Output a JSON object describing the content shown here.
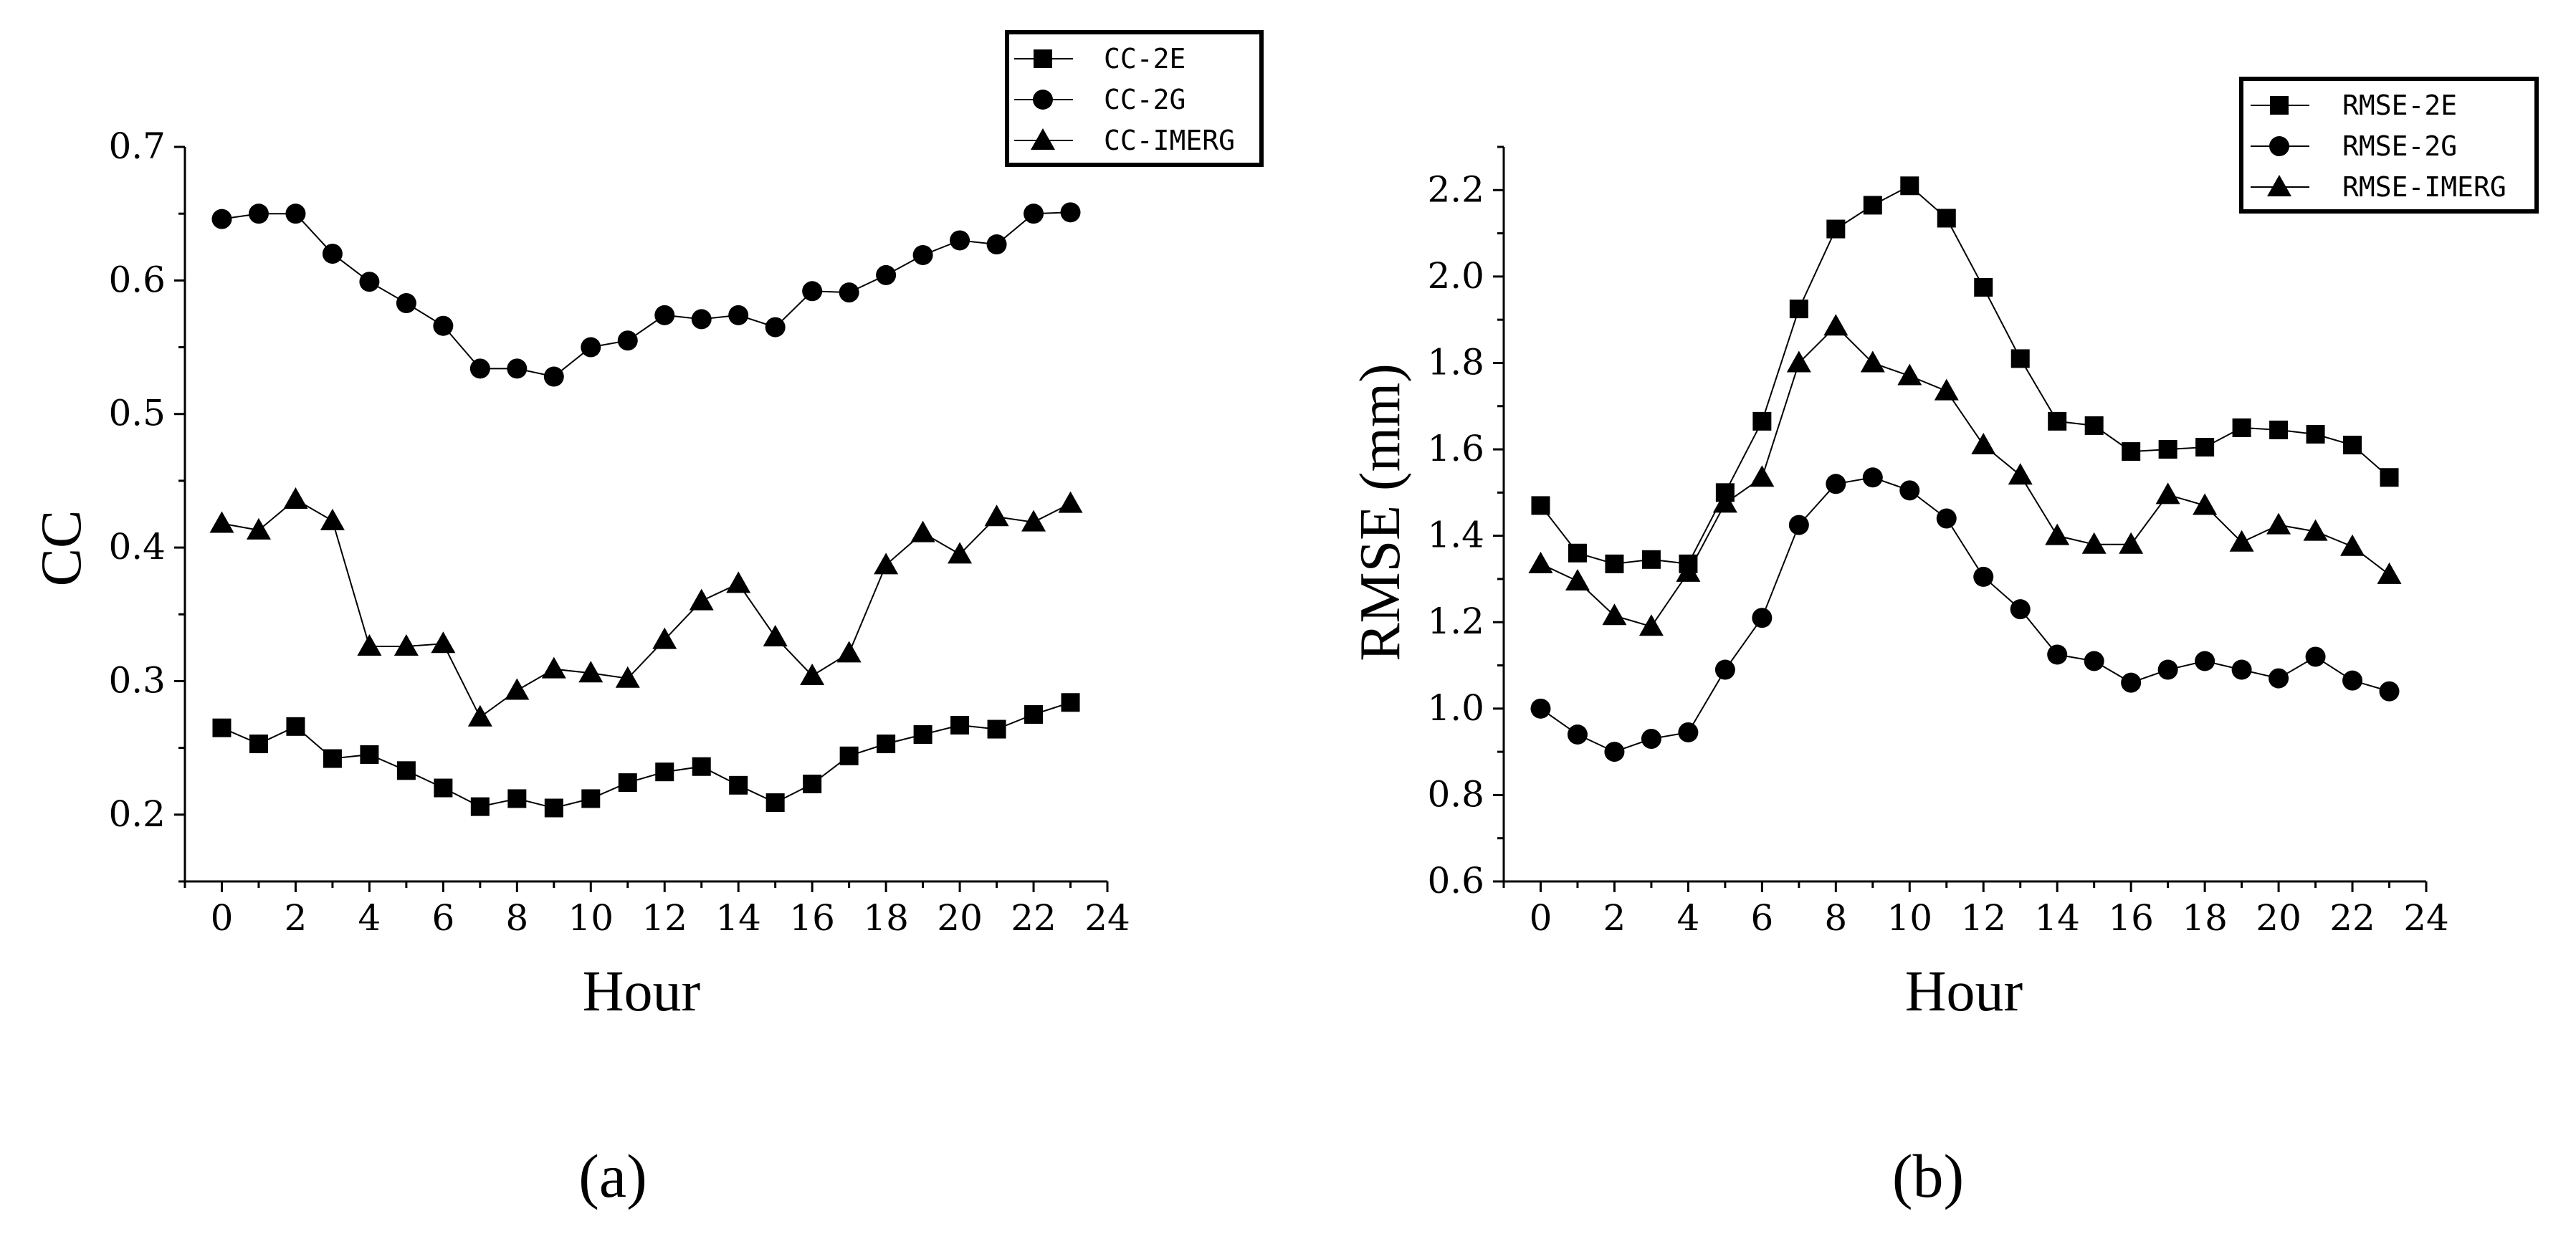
{
  "chart_data": [
    {
      "panel": "a",
      "caption": "(a)",
      "type": "line",
      "title": "",
      "xlabel": "Hour",
      "ylabel": "CC",
      "xlim": [
        -1,
        24
      ],
      "ylim": [
        0.15,
        0.7
      ],
      "xticks": [
        0,
        2,
        4,
        6,
        8,
        10,
        12,
        14,
        16,
        18,
        20,
        22,
        24
      ],
      "yticks": [
        0.2,
        0.3,
        0.4,
        0.5,
        0.6,
        0.7
      ],
      "ytick_labels": [
        "0.2",
        "0.3",
        "0.4",
        "0.5",
        "0.6",
        "0.7"
      ],
      "legend_position": "top-right",
      "x": [
        0,
        1,
        2,
        3,
        4,
        5,
        6,
        7,
        8,
        9,
        10,
        11,
        12,
        13,
        14,
        15,
        16,
        17,
        18,
        19,
        20,
        21,
        22,
        23
      ],
      "series": [
        {
          "name": "CC-2E",
          "marker": "square",
          "values": [
            0.265,
            0.253,
            0.266,
            0.242,
            0.245,
            0.233,
            0.22,
            0.206,
            0.212,
            0.205,
            0.212,
            0.224,
            0.232,
            0.236,
            0.222,
            0.209,
            0.223,
            0.244,
            0.253,
            0.26,
            0.267,
            0.264,
            0.275,
            0.284
          ]
        },
        {
          "name": "CC-2G",
          "marker": "circle",
          "values": [
            0.646,
            0.65,
            0.65,
            0.62,
            0.599,
            0.583,
            0.566,
            0.534,
            0.534,
            0.528,
            0.55,
            0.555,
            0.574,
            0.571,
            0.574,
            0.565,
            0.592,
            0.591,
            0.604,
            0.619,
            0.63,
            0.627,
            0.65,
            0.651
          ]
        },
        {
          "name": "CC-IMERG",
          "marker": "triangle",
          "values": [
            0.418,
            0.413,
            0.436,
            0.42,
            0.326,
            0.326,
            0.328,
            0.273,
            0.293,
            0.309,
            0.306,
            0.302,
            0.331,
            0.36,
            0.373,
            0.333,
            0.304,
            0.321,
            0.387,
            0.411,
            0.395,
            0.423,
            0.419,
            0.433
          ]
        }
      ]
    },
    {
      "panel": "b",
      "caption": "(b)",
      "type": "line",
      "title": "",
      "xlabel": "Hour",
      "ylabel": "RMSE (mm)",
      "xlim": [
        -1,
        24
      ],
      "ylim": [
        0.6,
        2.3
      ],
      "xticks": [
        0,
        2,
        4,
        6,
        8,
        10,
        12,
        14,
        16,
        18,
        20,
        22,
        24
      ],
      "yticks": [
        0.6,
        0.8,
        1.0,
        1.2,
        1.4,
        1.6,
        1.8,
        2.0,
        2.2
      ],
      "ytick_labels": [
        "0.6",
        "0.8",
        "1.0",
        "1.2",
        "1.4",
        "1.6",
        "1.8",
        "2.0",
        "2.2"
      ],
      "legend_position": "top-right",
      "x": [
        0,
        1,
        2,
        3,
        4,
        5,
        6,
        7,
        8,
        9,
        10,
        11,
        12,
        13,
        14,
        15,
        16,
        17,
        18,
        19,
        20,
        21,
        22,
        23
      ],
      "series": [
        {
          "name": "RMSE-2E",
          "marker": "square",
          "values": [
            1.47,
            1.36,
            1.335,
            1.345,
            1.335,
            1.5,
            1.665,
            1.925,
            2.11,
            2.165,
            2.21,
            2.135,
            1.975,
            1.81,
            1.665,
            1.655,
            1.595,
            1.6,
            1.605,
            1.65,
            1.645,
            1.635,
            1.61,
            1.535
          ]
        },
        {
          "name": "RMSE-2G",
          "marker": "circle",
          "values": [
            1.0,
            0.94,
            0.9,
            0.93,
            0.945,
            1.09,
            1.21,
            1.425,
            1.52,
            1.535,
            1.505,
            1.44,
            1.305,
            1.23,
            1.125,
            1.11,
            1.06,
            1.09,
            1.11,
            1.09,
            1.07,
            1.12,
            1.065,
            1.04
          ]
        },
        {
          "name": "RMSE-IMERG",
          "marker": "triangle",
          "values": [
            1.335,
            1.295,
            1.215,
            1.19,
            1.315,
            1.475,
            1.535,
            1.8,
            1.885,
            1.8,
            1.77,
            1.735,
            1.61,
            1.54,
            1.4,
            1.38,
            1.38,
            1.495,
            1.47,
            1.385,
            1.425,
            1.41,
            1.375,
            1.31
          ]
        }
      ]
    }
  ]
}
